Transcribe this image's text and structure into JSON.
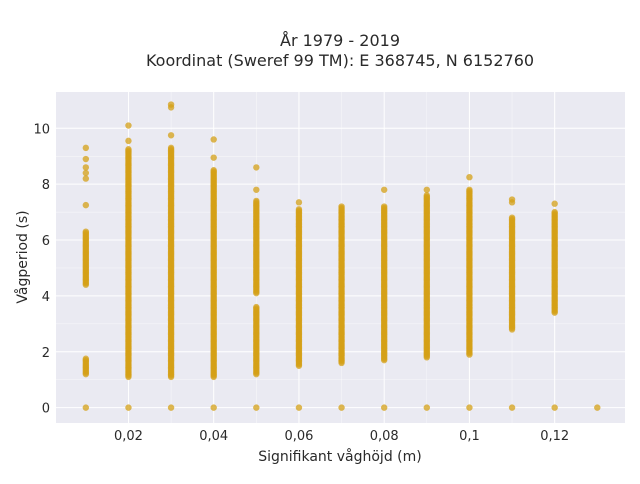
{
  "chart_data": {
    "type": "scatter",
    "title_line1": "År 1979 - 2019",
    "title_line2": "Koordinat (Sweref 99 TM): E 368745, N 6152760",
    "xlabel": "Signifikant våghöjd (m)",
    "ylabel": "Vågperiod (s)",
    "xlim": [
      0.003,
      0.1365
    ],
    "ylim": [
      -0.55,
      11.3
    ],
    "x_ticks": [
      {
        "value": 0.02,
        "label": "0,02"
      },
      {
        "value": 0.04,
        "label": "0,04"
      },
      {
        "value": 0.06,
        "label": "0,06"
      },
      {
        "value": 0.08,
        "label": "0,08"
      },
      {
        "value": 0.1,
        "label": "0,1"
      },
      {
        "value": 0.12,
        "label": "0,12"
      }
    ],
    "y_ticks": [
      {
        "value": 0,
        "label": "0"
      },
      {
        "value": 2,
        "label": "2"
      },
      {
        "value": 4,
        "label": "4"
      },
      {
        "value": 6,
        "label": "6"
      },
      {
        "value": 8,
        "label": "8"
      },
      {
        "value": 10,
        "label": "10"
      }
    ],
    "grid": true,
    "colors": {
      "background": "#eaeaf2",
      "grid": "#ffffff",
      "marker": "#d4a017"
    },
    "columns": [
      {
        "x": 0.01,
        "ranges": [
          [
            1.2,
            1.75
          ],
          [
            4.4,
            6.3
          ]
        ],
        "points": [
          0,
          7.25,
          8.2,
          8.4,
          8.6,
          8.9,
          9.3
        ]
      },
      {
        "x": 0.02,
        "ranges": [
          [
            1.1,
            9.25
          ]
        ],
        "points": [
          0,
          9.55,
          10.1
        ]
      },
      {
        "x": 0.03,
        "ranges": [
          [
            1.1,
            9.3
          ]
        ],
        "points": [
          0,
          9.75,
          10.75,
          10.85
        ]
      },
      {
        "x": 0.04,
        "ranges": [
          [
            1.1,
            8.5
          ]
        ],
        "points": [
          0,
          8.95,
          9.6
        ]
      },
      {
        "x": 0.05,
        "ranges": [
          [
            1.2,
            3.6
          ],
          [
            4.1,
            7.4
          ]
        ],
        "points": [
          0,
          7.8,
          8.6
        ]
      },
      {
        "x": 0.06,
        "ranges": [
          [
            1.5,
            7.1
          ]
        ],
        "points": [
          0,
          7.35
        ]
      },
      {
        "x": 0.07,
        "ranges": [
          [
            1.6,
            7.2
          ]
        ],
        "points": [
          0
        ]
      },
      {
        "x": 0.08,
        "ranges": [
          [
            1.7,
            7.2
          ]
        ],
        "points": [
          0,
          7.8
        ]
      },
      {
        "x": 0.09,
        "ranges": [
          [
            1.8,
            7.6
          ]
        ],
        "points": [
          0,
          7.8
        ]
      },
      {
        "x": 0.1,
        "ranges": [
          [
            1.9,
            7.8
          ]
        ],
        "points": [
          0,
          8.25
        ]
      },
      {
        "x": 0.11,
        "ranges": [
          [
            2.8,
            6.8
          ]
        ],
        "points": [
          0,
          7.35,
          7.45
        ]
      },
      {
        "x": 0.12,
        "ranges": [
          [
            3.4,
            7.0
          ]
        ],
        "points": [
          0,
          7.3
        ]
      },
      {
        "x": 0.13,
        "ranges": [],
        "points": [
          0
        ]
      }
    ]
  }
}
